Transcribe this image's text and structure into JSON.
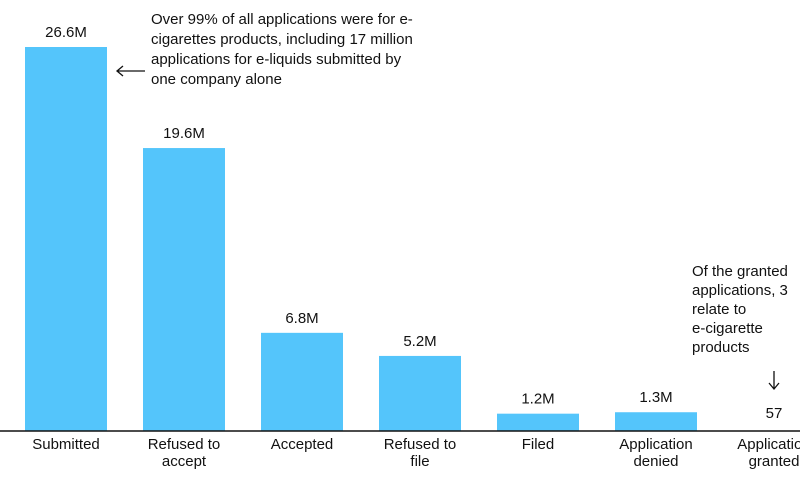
{
  "chart_data": {
    "type": "bar",
    "categories": [
      [
        "Submitted"
      ],
      [
        "Refused to",
        "accept"
      ],
      [
        "Accepted"
      ],
      [
        "Refused to",
        "file"
      ],
      [
        "Filed"
      ],
      [
        "Application",
        "denied"
      ],
      [
        "Application",
        "granted"
      ]
    ],
    "values": [
      26600000,
      19600000,
      6800000,
      5200000,
      1200000,
      1300000,
      57
    ],
    "value_labels": [
      "26.6M",
      "19.6M",
      "6.8M",
      "5.2M",
      "1.2M",
      "1.3M",
      "57"
    ],
    "ylim": [
      0,
      26600000
    ],
    "grid": false,
    "bar_color": "#54c5fb",
    "annotations": [
      {
        "target_category": 0,
        "arrow": "left",
        "lines": [
          "Over 99% of all applications were for e-",
          "cigarettes products, including 17 million",
          "applications for e-liquids submitted by",
          "one company alone"
        ]
      },
      {
        "target_category": 6,
        "arrow": "down",
        "lines": [
          "Of the granted",
          "applications, 3",
          "relate to",
          "e-cigarette",
          "products"
        ]
      }
    ]
  }
}
